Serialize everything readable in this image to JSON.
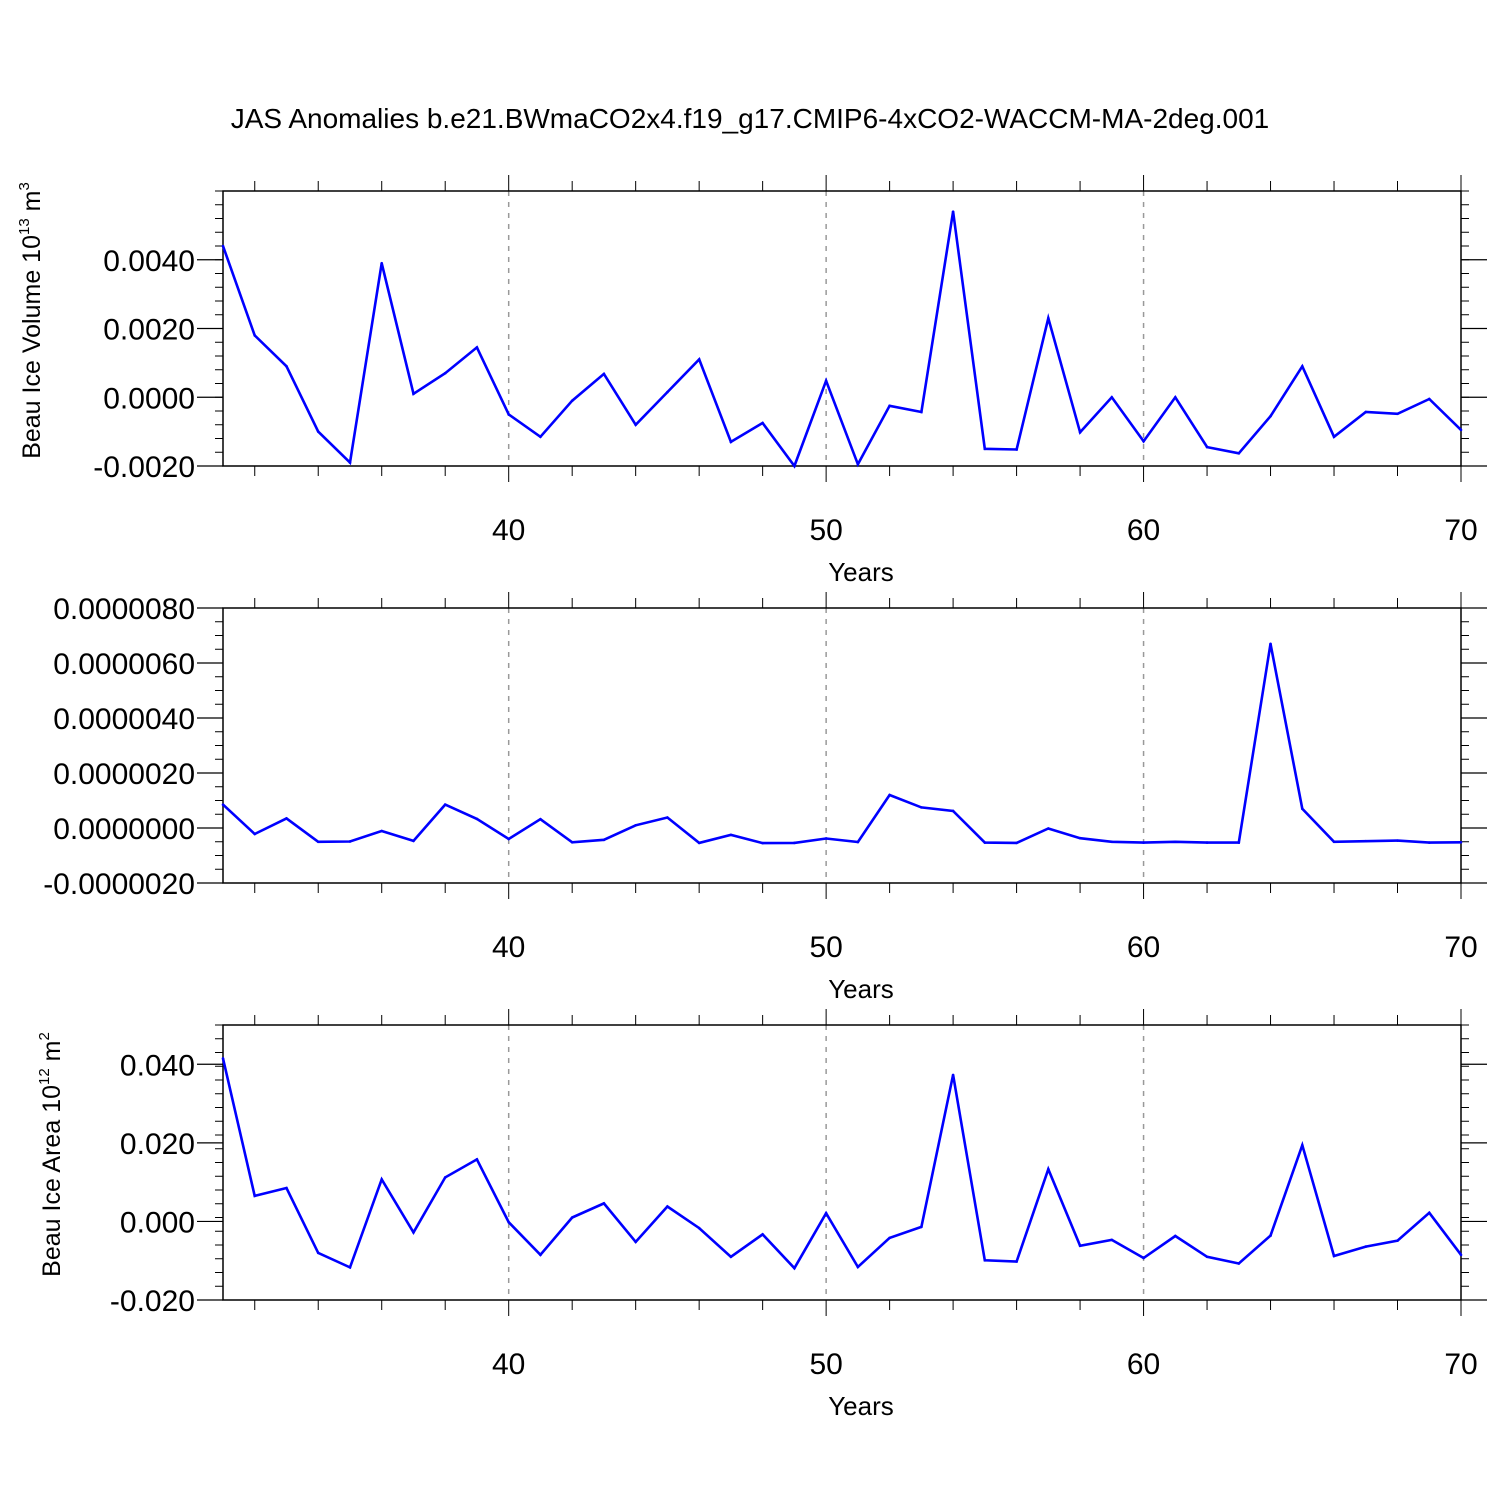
{
  "title": "JAS Anomalies b.e21.BWmaCO2x4.f19_g17.CMIP6-4xCO2-WACCM-MA-2deg.001",
  "colors": {
    "series": "#0000ff",
    "grid": "#999999",
    "axis": "#000000"
  },
  "chart_data": [
    {
      "type": "line",
      "ylabel": "Beau Ice Volume 10",
      "ylabel_exp": "13",
      "ylabel_unit": " m",
      "ylabel_unit_exp": "3",
      "xlabel": "Years",
      "xlim": [
        31,
        70
      ],
      "ylim": [
        -0.002,
        0.006
      ],
      "yticks": [
        -0.002,
        0.0,
        0.002,
        0.004
      ],
      "ytick_labels": [
        "-0.0020",
        "0.0000",
        "0.0020",
        "0.0040"
      ],
      "xticks": [
        40,
        50,
        60,
        70
      ],
      "xtick_labels": [
        "40",
        "50",
        "60",
        "70"
      ],
      "grid_x": [
        40,
        50,
        60
      ],
      "x": [
        31,
        32,
        33,
        34,
        35,
        36,
        37,
        38,
        39,
        40,
        41,
        42,
        43,
        44,
        45,
        46,
        47,
        48,
        49,
        50,
        51,
        52,
        53,
        54,
        55,
        56,
        57,
        58,
        59,
        60,
        61,
        62,
        63,
        64,
        65,
        66,
        67,
        68,
        69,
        70
      ],
      "values": [
        0.0044,
        0.0018,
        0.0009,
        -0.001,
        -0.0019,
        0.0039,
        0.0001,
        0.0007,
        0.00145,
        -0.0005,
        -0.00115,
        -0.0001,
        0.00068,
        -0.0008,
        0.00015,
        0.0011,
        -0.0013,
        -0.00075,
        -0.002,
        0.00048,
        -0.00195,
        -0.00025,
        -0.00043,
        0.0054,
        -0.0015,
        -0.00152,
        0.0023,
        -0.00102,
        0.0,
        -0.00128,
        0.0,
        -0.00145,
        -0.00163,
        -0.00055,
        0.0009,
        -0.00115,
        -0.00043,
        -0.00048,
        -5e-05,
        -0.00095
      ]
    },
    {
      "type": "line",
      "ylabel": "",
      "xlabel": "Years",
      "xlim": [
        31,
        70
      ],
      "ylim": [
        -2e-06,
        8e-06
      ],
      "yticks": [
        -2e-06,
        0.0,
        2e-06,
        4e-06,
        6e-06,
        8e-06
      ],
      "ytick_labels": [
        "-0.0000020",
        "0.0000000",
        "0.0000020",
        "0.0000040",
        "0.0000060",
        "0.0000080"
      ],
      "xticks": [
        40,
        50,
        60,
        70
      ],
      "xtick_labels": [
        "40",
        "50",
        "60",
        "70"
      ],
      "grid_x": [
        40,
        50,
        60
      ],
      "x": [
        31,
        32,
        33,
        34,
        35,
        36,
        37,
        38,
        39,
        40,
        41,
        42,
        43,
        44,
        45,
        46,
        47,
        48,
        49,
        50,
        51,
        52,
        53,
        54,
        55,
        56,
        57,
        58,
        59,
        60,
        61,
        62,
        63,
        64,
        65,
        66,
        67,
        68,
        69,
        70
      ],
      "values": [
        8.5e-07,
        -2.2e-07,
        3.5e-07,
        -5e-07,
        -4.9e-07,
        -1.1e-07,
        -4.7e-07,
        8.5e-07,
        3.3e-07,
        -4e-07,
        3.2e-07,
        -5.2e-07,
        -4.3e-07,
        1e-07,
        3.8e-07,
        -5.4e-07,
        -2.5e-07,
        -5.5e-07,
        -5.4e-07,
        -3.8e-07,
        -5.1e-07,
        1.2e-06,
        7.5e-07,
        6.2e-07,
        -5.3e-07,
        -5.4e-07,
        -2e-08,
        -3.7e-07,
        -5e-07,
        -5.3e-07,
        -5e-07,
        -5.3e-07,
        -5.3e-07,
        6.7e-06,
        7e-07,
        -5e-07,
        -4.8e-07,
        -4.6e-07,
        -5.3e-07,
        -5.2e-07
      ]
    },
    {
      "type": "line",
      "ylabel": "Beau Ice Area 10",
      "ylabel_exp": "12",
      "ylabel_unit": " m",
      "ylabel_unit_exp": "2",
      "xlabel": "Years",
      "xlim": [
        31,
        70
      ],
      "ylim": [
        -0.02,
        0.05
      ],
      "yticks": [
        -0.02,
        0.0,
        0.02,
        0.04
      ],
      "ytick_labels": [
        "-0.020",
        "0.000",
        "0.020",
        "0.040"
      ],
      "xticks": [
        40,
        50,
        60,
        70
      ],
      "xtick_labels": [
        "40",
        "50",
        "60",
        "70"
      ],
      "grid_x": [
        40,
        50,
        60
      ],
      "x": [
        31,
        32,
        33,
        34,
        35,
        36,
        37,
        38,
        39,
        40,
        41,
        42,
        43,
        44,
        45,
        46,
        47,
        48,
        49,
        50,
        51,
        52,
        53,
        54,
        55,
        56,
        57,
        58,
        59,
        60,
        61,
        62,
        63,
        64,
        65,
        66,
        67,
        68,
        69,
        70
      ],
      "values": [
        0.0415,
        0.0065,
        0.0085,
        -0.008,
        -0.0117,
        0.0107,
        -0.0028,
        0.0112,
        0.0158,
        -0.0002,
        -0.0085,
        0.001,
        0.0046,
        -0.0052,
        0.0038,
        -0.0017,
        -0.009,
        -0.0033,
        -0.0119,
        0.0021,
        -0.0116,
        -0.0042,
        -0.0014,
        0.0373,
        -0.0099,
        -0.0102,
        0.0133,
        -0.0062,
        -0.0047,
        -0.0093,
        -0.0037,
        -0.009,
        -0.0107,
        -0.0036,
        0.0194,
        -0.0088,
        -0.0064,
        -0.0049,
        0.0022,
        -0.0085
      ]
    }
  ]
}
